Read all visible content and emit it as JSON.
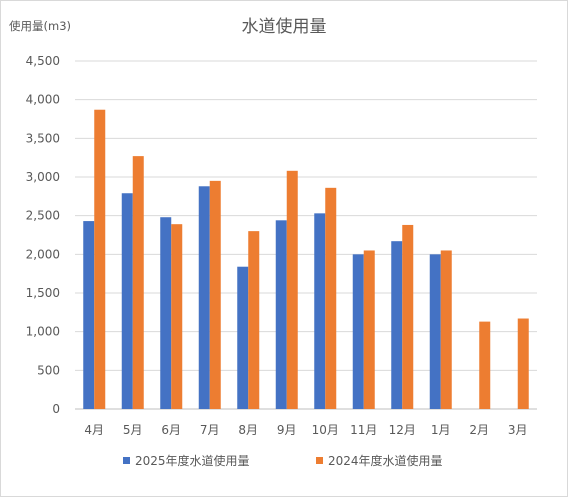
{
  "chart_data": {
    "type": "bar",
    "title": "水道使用量",
    "ylabel": "使用量(m3)",
    "xlabel": "",
    "categories": [
      "4月",
      "5月",
      "6月",
      "7月",
      "8月",
      "9月",
      "10月",
      "11月",
      "12月",
      "1月",
      "2月",
      "3月"
    ],
    "ylim": [
      0,
      4500
    ],
    "yticks": [
      0,
      500,
      1000,
      1500,
      2000,
      2500,
      3000,
      3500,
      4000,
      4500
    ],
    "ytick_labels": [
      "0",
      "500",
      "1,000",
      "1,500",
      "2,000",
      "2,500",
      "3,000",
      "3,500",
      "4,000",
      "4,500"
    ],
    "grid": true,
    "legend_position": "bottom",
    "series": [
      {
        "name": "2025年度水道使用量",
        "color": "#4472c4",
        "values": [
          2430,
          2790,
          2480,
          2880,
          1840,
          2440,
          2530,
          2000,
          2170,
          2000,
          null,
          null
        ]
      },
      {
        "name": "2024年度水道使用量",
        "color": "#ed7d31",
        "values": [
          3870,
          3270,
          2390,
          2950,
          2300,
          3080,
          2860,
          2050,
          2380,
          2050,
          1130,
          1170
        ]
      }
    ]
  }
}
